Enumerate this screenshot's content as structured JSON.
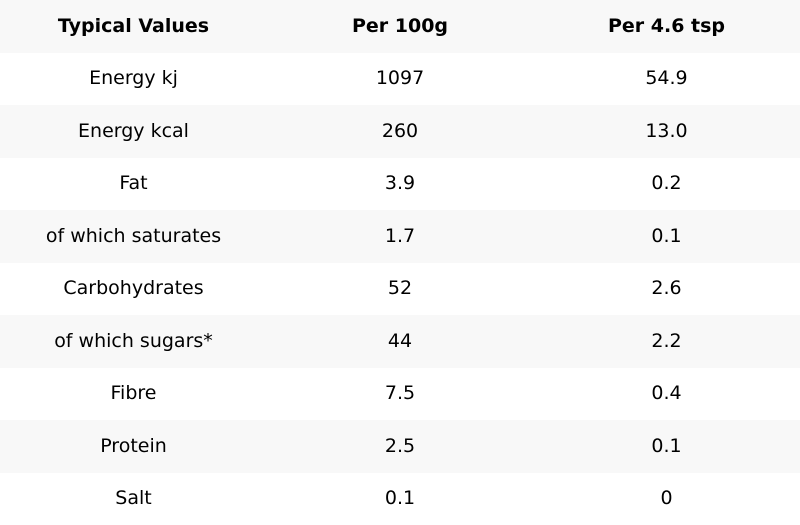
{
  "table": {
    "headers": [
      "Typical Values",
      "Per 100g",
      "Per 4.6 tsp"
    ],
    "rows": [
      [
        "Energy kj",
        "1097",
        "54.9"
      ],
      [
        "Energy kcal",
        "260",
        "13.0"
      ],
      [
        "Fat",
        "3.9",
        "0.2"
      ],
      [
        "of which saturates",
        "1.7",
        "0.1"
      ],
      [
        "Carbohydrates",
        "52",
        "2.6"
      ],
      [
        "of which sugars*",
        "44",
        "2.2"
      ],
      [
        "Fibre",
        "7.5",
        "0.4"
      ],
      [
        "Protein",
        "2.5",
        "0.1"
      ],
      [
        "Salt",
        "0.1",
        "0"
      ]
    ]
  },
  "colors": {
    "shaded_row": "#f8f8f8",
    "plain_row": "#ffffff",
    "text": "#000000"
  }
}
